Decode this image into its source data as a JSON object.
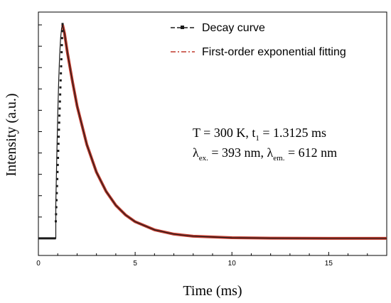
{
  "chart_data": {
    "type": "line",
    "xlabel": "Time (ms)",
    "ylabel": "Intensity (a.u.)",
    "xlim": [
      0,
      18
    ],
    "ylim": [
      -0.08,
      1.06
    ],
    "yticklabels_shown": false,
    "xticks": [
      0,
      5,
      10,
      15
    ],
    "xticklabels": [
      "0",
      "5",
      "10",
      "15"
    ],
    "legend_position": "top-right",
    "series": [
      {
        "name": "Decay curve",
        "color": "#1a1a1a",
        "marker": "square",
        "style": "dashed",
        "points": [
          [
            0,
            0
          ],
          [
            0.5,
            0
          ],
          [
            0.9,
            0
          ],
          [
            0.9,
            0.16
          ],
          [
            0.95,
            0.38
          ],
          [
            1.0,
            0.58
          ],
          [
            1.05,
            0.74
          ],
          [
            1.1,
            0.86
          ],
          [
            1.15,
            0.94
          ],
          [
            1.2,
            0.985
          ],
          [
            1.25,
            1.0
          ],
          [
            1.35,
            0.96
          ],
          [
            1.5,
            0.87
          ],
          [
            1.75,
            0.74
          ],
          [
            2.0,
            0.62
          ],
          [
            2.5,
            0.44
          ],
          [
            3.0,
            0.31
          ],
          [
            3.5,
            0.22
          ],
          [
            4.0,
            0.155
          ],
          [
            4.5,
            0.11
          ],
          [
            5.0,
            0.078
          ],
          [
            6.0,
            0.04
          ],
          [
            7.0,
            0.02
          ],
          [
            8.0,
            0.01
          ],
          [
            10.0,
            0.003
          ],
          [
            12.0,
            0.001
          ],
          [
            15.0,
            0.0
          ],
          [
            18.0,
            0.0
          ]
        ]
      },
      {
        "name": "First-order exponential fitting",
        "color": "#c0392b",
        "marker": "none",
        "style": "dash-dot",
        "points": [
          [
            1.25,
            1.0
          ],
          [
            1.35,
            0.96
          ],
          [
            1.5,
            0.87
          ],
          [
            1.75,
            0.74
          ],
          [
            2.0,
            0.62
          ],
          [
            2.5,
            0.44
          ],
          [
            3.0,
            0.31
          ],
          [
            3.5,
            0.22
          ],
          [
            4.0,
            0.155
          ],
          [
            4.5,
            0.11
          ],
          [
            5.0,
            0.078
          ],
          [
            6.0,
            0.04
          ],
          [
            7.0,
            0.02
          ],
          [
            8.0,
            0.01
          ],
          [
            10.0,
            0.003
          ],
          [
            12.0,
            0.001
          ],
          [
            15.0,
            0.0
          ],
          [
            18.0,
            0.0
          ]
        ]
      }
    ],
    "annotations": {
      "line1_main": "T = 300 K, t",
      "line1_sub": "1",
      "line1_tail": " = 1.3125 ms",
      "line2_l1": "λ",
      "line2_sub1": "ex.",
      "line2_mid": " = 393 nm, λ",
      "line2_sub2": "em.",
      "line2_tail": " = 612 nm"
    }
  }
}
